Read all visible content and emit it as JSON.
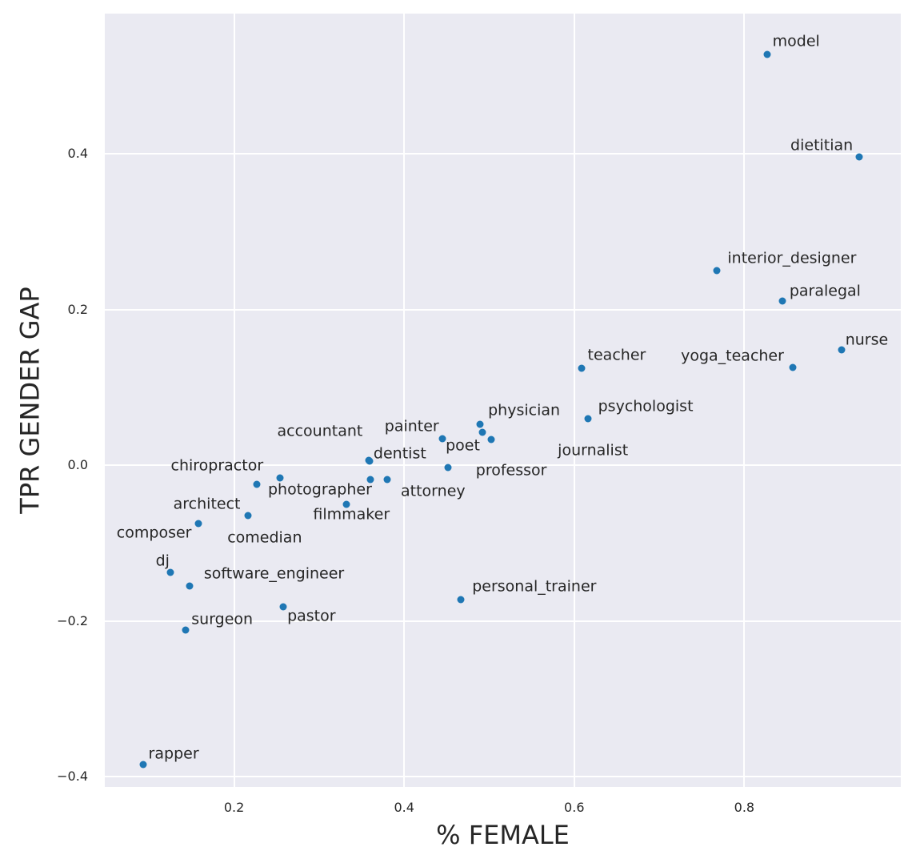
{
  "chart_data": {
    "type": "scatter",
    "title": "",
    "xlabel": "% FEMALE",
    "ylabel": "TPR GENDER GAP",
    "grid": true,
    "legend": false,
    "plot_bg_color": "#eaeaf2",
    "grid_color": "#ffffff",
    "point_color": "#1f77b4",
    "text_color": "#262626",
    "xlim": [
      0.048,
      0.984
    ],
    "ylim": [
      -0.413,
      0.58
    ],
    "x_ticks": [
      {
        "value": 0.2,
        "label": "0.2"
      },
      {
        "value": 0.4,
        "label": "0.4"
      },
      {
        "value": 0.6,
        "label": "0.6"
      },
      {
        "value": 0.8,
        "label": "0.8"
      }
    ],
    "y_ticks": [
      {
        "value": 0.4,
        "label": "0.4"
      },
      {
        "value": 0.2,
        "label": "0.2"
      },
      {
        "value": 0.0,
        "label": "0.0"
      },
      {
        "value": -0.2,
        "label": "−0.2"
      },
      {
        "value": -0.4,
        "label": "−0.4"
      }
    ],
    "points": [
      {
        "label": "model",
        "x": 0.827,
        "y": 0.528,
        "label_x": 0.861,
        "label_y": 0.544
      },
      {
        "label": "dietitian",
        "x": 0.935,
        "y": 0.396,
        "label_x": 0.891,
        "label_y": 0.41
      },
      {
        "label": "interior_designer",
        "x": 0.768,
        "y": 0.25,
        "label_x": 0.856,
        "label_y": 0.265
      },
      {
        "label": "paralegal",
        "x": 0.845,
        "y": 0.211,
        "label_x": 0.895,
        "label_y": 0.223
      },
      {
        "label": "nurse",
        "x": 0.914,
        "y": 0.148,
        "label_x": 0.944,
        "label_y": 0.161
      },
      {
        "label": "yoga_teacher",
        "x": 0.857,
        "y": 0.126,
        "label_x": 0.786,
        "label_y": 0.14
      },
      {
        "label": "teacher",
        "x": 0.609,
        "y": 0.125,
        "label_x": 0.65,
        "label_y": 0.141
      },
      {
        "label": "psychologist",
        "x": 0.616,
        "y": 0.06,
        "label_x": 0.684,
        "label_y": 0.075
      },
      {
        "label": "physician",
        "x": 0.489,
        "y": 0.053,
        "label_x": 0.541,
        "label_y": 0.07
      },
      {
        "label": "poet",
        "x": 0.492,
        "y": 0.042,
        "label_x": 0.469,
        "label_y": 0.025
      },
      {
        "label": "journalist",
        "x": 0.502,
        "y": 0.033,
        "label_x": 0.622,
        "label_y": 0.019
      },
      {
        "label": "painter",
        "x": 0.445,
        "y": 0.034,
        "label_x": 0.409,
        "label_y": 0.05
      },
      {
        "label": "professor",
        "x": 0.452,
        "y": -0.003,
        "label_x": 0.526,
        "label_y": -0.007
      },
      {
        "label": "accountant",
        "x": 0.358,
        "y": 0.006,
        "label_x": 0.301,
        "label_y": 0.043
      },
      {
        "label": "dentist",
        "x": 0.359,
        "y": 0.005,
        "label_x": 0.395,
        "label_y": 0.015
      },
      {
        "label": "photographer",
        "x": 0.36,
        "y": -0.018,
        "label_x": 0.301,
        "label_y": -0.032
      },
      {
        "label": "attorney",
        "x": 0.38,
        "y": -0.018,
        "label_x": 0.434,
        "label_y": -0.034
      },
      {
        "label": "filmmaker",
        "x": 0.332,
        "y": -0.05,
        "label_x": 0.338,
        "label_y": -0.063
      },
      {
        "label": "chiropractor",
        "x": 0.254,
        "y": -0.016,
        "label_x": 0.18,
        "label_y": -0.001
      },
      {
        "label": "architect",
        "x": 0.227,
        "y": -0.024,
        "label_x": 0.168,
        "label_y": -0.05
      },
      {
        "label": "comedian",
        "x": 0.216,
        "y": -0.065,
        "label_x": 0.236,
        "label_y": -0.093
      },
      {
        "label": "composer",
        "x": 0.158,
        "y": -0.075,
        "label_x": 0.106,
        "label_y": -0.087
      },
      {
        "label": "dj",
        "x": 0.125,
        "y": -0.137,
        "label_x": 0.116,
        "label_y": -0.123
      },
      {
        "label": "software_engineer",
        "x": 0.148,
        "y": -0.155,
        "label_x": 0.247,
        "label_y": -0.14
      },
      {
        "label": "surgeon",
        "x": 0.143,
        "y": -0.212,
        "label_x": 0.186,
        "label_y": -0.198
      },
      {
        "label": "pastor",
        "x": 0.258,
        "y": -0.182,
        "label_x": 0.291,
        "label_y": -0.194
      },
      {
        "label": "personal_trainer",
        "x": 0.467,
        "y": -0.172,
        "label_x": 0.553,
        "label_y": -0.156
      },
      {
        "label": "rapper",
        "x": 0.093,
        "y": -0.384,
        "label_x": 0.129,
        "label_y": -0.371
      }
    ]
  }
}
